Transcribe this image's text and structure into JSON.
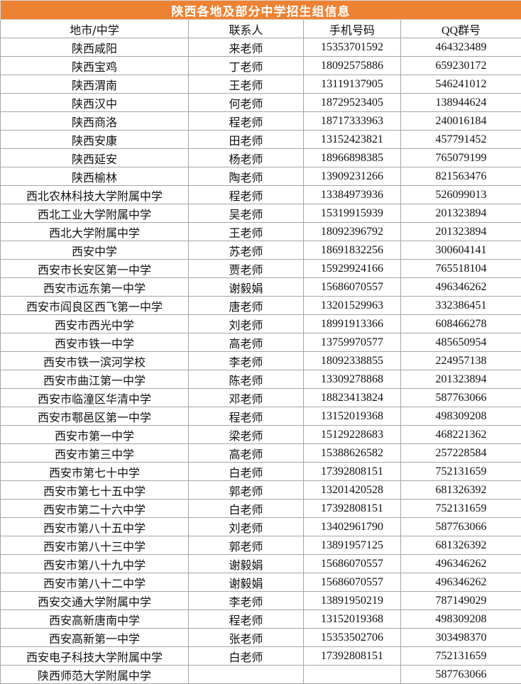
{
  "title": "陕西各地及部分中学招生组信息",
  "headers": [
    "地市/中学",
    "联系人",
    "手机号码",
    "QQ群号"
  ],
  "rows": [
    [
      "陕西咸阳",
      "来老师",
      "15353701592",
      "464323489"
    ],
    [
      "陕西宝鸡",
      "丁老师",
      "18092575886",
      "659230172"
    ],
    [
      "陕西渭南",
      "王老师",
      "13119137905",
      "546241012"
    ],
    [
      "陕西汉中",
      "何老师",
      "18729523405",
      "138944624"
    ],
    [
      "陕西商洛",
      "程老师",
      "18717333963",
      "240016184"
    ],
    [
      "陕西安康",
      "田老师",
      "13152423821",
      "457791452"
    ],
    [
      "陕西延安",
      "杨老师",
      "18966898385",
      "765079199"
    ],
    [
      "陕西榆林",
      "陶老师",
      "13909231266",
      "821563476"
    ],
    [
      "西北农林科技大学附属中学",
      "程老师",
      "13384973936",
      "526099013"
    ],
    [
      "西北工业大学附属中学",
      "吴老师",
      "15319915939",
      "201323894"
    ],
    [
      "西北大学附属中学",
      "王老师",
      "18092396792",
      "201323894"
    ],
    [
      "西安中学",
      "苏老师",
      "18691832256",
      "300604141"
    ],
    [
      "西安市长安区第一中学",
      "贾老师",
      "15929924166",
      "765518104"
    ],
    [
      "西安市远东第一中学",
      "谢毅娟",
      "15686070557",
      "496346262"
    ],
    [
      "西安市阎良区西飞第一中学",
      "唐老师",
      "13201529963",
      "332386451"
    ],
    [
      "西安市西光中学",
      "刘老师",
      "18991913366",
      "608466278"
    ],
    [
      "西安市铁一中学",
      "高老师",
      "13759970577",
      "485650954"
    ],
    [
      "西安市铁一滨河学校",
      "李老师",
      "18092338855",
      "224957138"
    ],
    [
      "西安市曲江第一中学",
      "陈老师",
      "13309278868",
      "201323894"
    ],
    [
      "西安市临潼区华清中学",
      "邓老师",
      "18823413824",
      "587763066"
    ],
    [
      "西安市鄠邑区第一中学",
      "程老师",
      "13152019368",
      "498309208"
    ],
    [
      "西安市第一中学",
      "梁老师",
      "15129228683",
      "468221362"
    ],
    [
      "西安市第三中学",
      "高老师",
      "15388626582",
      "257228584"
    ],
    [
      "西安市第七十中学",
      "白老师",
      "17392808151",
      "752131659"
    ],
    [
      "西安市第七十五中学",
      "郭老师",
      "13201420528",
      "681326392"
    ],
    [
      "西安市第二十六中学",
      "白老师",
      "17392808151",
      "752131659"
    ],
    [
      "西安市第八十五中学",
      "刘老师",
      "13402961790",
      "587763066"
    ],
    [
      "西安市第八十三中学",
      "郭老师",
      "13891957125",
      "681326392"
    ],
    [
      "西安市第八十九中学",
      "谢毅娟",
      "15686070557",
      "496346262"
    ],
    [
      "西安市第八十二中学",
      "谢毅娟",
      "15686070557",
      "496346262"
    ],
    [
      "西安交通大学附属中学",
      "李老师",
      "13891950219",
      "787149029"
    ],
    [
      "西安高新唐南中学",
      "程老师",
      "13152019368",
      "498309208"
    ],
    [
      "西安高新第一中学",
      "张老师",
      "15353502706",
      "303498370"
    ],
    [
      "西安电子科技大学附属中学",
      "白老师",
      "17392808151",
      "752131659"
    ],
    [
      "陕西师范大学附属中学",
      "",
      "",
      "587763066"
    ]
  ]
}
